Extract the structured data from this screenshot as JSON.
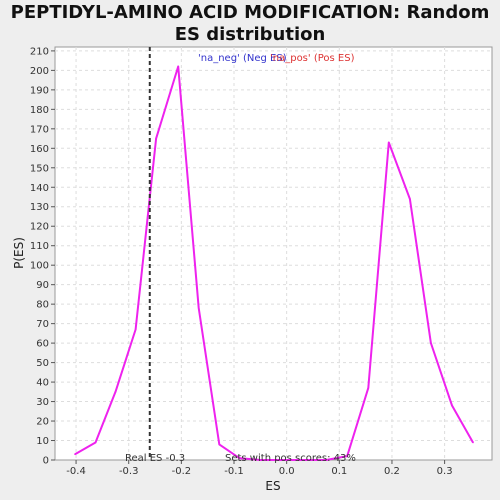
{
  "chart_data": {
    "type": "line",
    "title": "PEPTIDYL-AMINO ACID MODIFICATION: Random ES distribution",
    "xlabel": "ES",
    "ylabel": "P(ES)",
    "xlim": [
      -0.44,
      0.39
    ],
    "ylim": [
      0,
      212
    ],
    "xticks": [
      -0.4,
      -0.3,
      -0.2,
      -0.1,
      0.0,
      0.1,
      0.2,
      0.3
    ],
    "xtick_labels": [
      "-0.4",
      "-0.3",
      "-0.2",
      "-0.1",
      "0.0",
      "0.1",
      "0.2",
      "0.3"
    ],
    "yticks": [
      0,
      10,
      20,
      30,
      40,
      50,
      60,
      70,
      80,
      90,
      100,
      110,
      120,
      130,
      140,
      150,
      160,
      170,
      180,
      190,
      200,
      210
    ],
    "grid": true,
    "legend": [
      {
        "label": "'na_neg' (Neg ES)",
        "color": "#3333cc"
      },
      {
        "label": "'na_pos' (Pos ES)",
        "color": "#dd3333"
      }
    ],
    "series": [
      {
        "color": "#ee22ee",
        "x": [
          -0.402,
          -0.363,
          -0.325,
          -0.287,
          -0.248,
          -0.206,
          -0.167,
          -0.128,
          -0.09,
          -0.05,
          -0.01,
          0.03,
          0.075,
          0.115,
          0.155,
          0.194,
          0.234,
          0.274,
          0.314,
          0.354
        ],
        "y": [
          3,
          9,
          35,
          67,
          165,
          202,
          78,
          8,
          1,
          0,
          0,
          0,
          0,
          2,
          37,
          163,
          134,
          60,
          28,
          9
        ]
      }
    ],
    "real_es": -0.26,
    "annotations": {
      "real_es": "Real ES -0.3",
      "pos_scores": "Sets with pos scores: 43%"
    }
  }
}
